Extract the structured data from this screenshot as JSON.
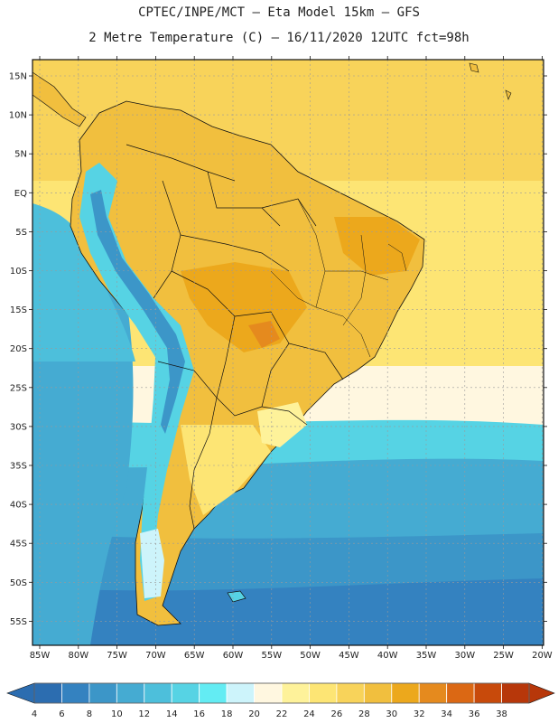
{
  "header": {
    "line1": "CPTEC/INPE/MCT –  Eta Model 15km – GFS",
    "line2": "2 Metre Temperature (C) – 16/11/2020 12UTC fct=98h"
  },
  "axes": {
    "lat_labels": [
      "15N",
      "10N",
      "5N",
      "EQ",
      "5S",
      "10S",
      "15S",
      "20S",
      "25S",
      "30S",
      "35S",
      "40S",
      "45S",
      "50S",
      "55S"
    ],
    "lon_labels": [
      "85W",
      "80W",
      "75W",
      "70W",
      "65W",
      "60W",
      "55W",
      "50W",
      "45W",
      "40W",
      "35W",
      "30W",
      "25W",
      "20W"
    ]
  },
  "colorbar": {
    "labels": [
      "4",
      "6",
      "8",
      "10",
      "12",
      "14",
      "16",
      "18",
      "20",
      "22",
      "24",
      "26",
      "28",
      "30",
      "32",
      "34",
      "36",
      "38"
    ],
    "colors": [
      "#2c6db0",
      "#3482c0",
      "#3c96c8",
      "#45abd2",
      "#4dbfdb",
      "#56d3e4",
      "#63ecf3",
      "#cdf4fb",
      "#fff7e0",
      "#fef29a",
      "#fde574",
      "#f8d35a",
      "#f1bf3e",
      "#eca81c",
      "#e58a1e",
      "#db6814",
      "#c84a0b",
      "#b7370a"
    ]
  },
  "map": {
    "extent": {
      "lon_min": -86,
      "lon_max": -19,
      "lat_min": -58,
      "lat_max": 17
    },
    "ocean_colors": {
      "warm": "#f8d35a",
      "mild": "#fde574",
      "cool": "#fff7e0",
      "cold": "#45abd2",
      "colder": "#3482c0"
    },
    "land_colors": {
      "hot": "#f1bf3e",
      "hotter": "#eca81c",
      "andes": "#56d3e4",
      "andes_high": "#3c96c8"
    }
  }
}
